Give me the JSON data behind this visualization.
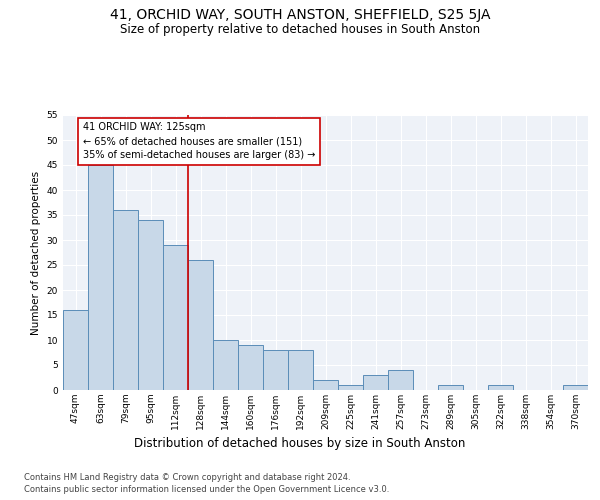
{
  "title": "41, ORCHID WAY, SOUTH ANSTON, SHEFFIELD, S25 5JA",
  "subtitle": "Size of property relative to detached houses in South Anston",
  "xlabel": "Distribution of detached houses by size in South Anston",
  "ylabel": "Number of detached properties",
  "categories": [
    "47sqm",
    "63sqm",
    "79sqm",
    "95sqm",
    "112sqm",
    "128sqm",
    "144sqm",
    "160sqm",
    "176sqm",
    "192sqm",
    "209sqm",
    "225sqm",
    "241sqm",
    "257sqm",
    "273sqm",
    "289sqm",
    "305sqm",
    "322sqm",
    "338sqm",
    "354sqm",
    "370sqm"
  ],
  "values": [
    16,
    45,
    36,
    34,
    29,
    26,
    10,
    9,
    8,
    8,
    2,
    1,
    3,
    4,
    0,
    1,
    0,
    1,
    0,
    0,
    1
  ],
  "bar_color": "#c8d8e8",
  "bar_edge_color": "#5b8db8",
  "vline_color": "#cc0000",
  "annotation_text": "41 ORCHID WAY: 125sqm\n← 65% of detached houses are smaller (151)\n35% of semi-detached houses are larger (83) →",
  "annotation_box_color": "#cc0000",
  "ylim": [
    0,
    55
  ],
  "yticks": [
    0,
    5,
    10,
    15,
    20,
    25,
    30,
    35,
    40,
    45,
    50,
    55
  ],
  "plot_bg_color": "#eef2f8",
  "footer_line1": "Contains HM Land Registry data © Crown copyright and database right 2024.",
  "footer_line2": "Contains public sector information licensed under the Open Government Licence v3.0.",
  "title_fontsize": 10,
  "subtitle_fontsize": 8.5,
  "xlabel_fontsize": 8.5,
  "ylabel_fontsize": 7.5,
  "tick_fontsize": 6.5,
  "annotation_fontsize": 7,
  "footer_fontsize": 6
}
